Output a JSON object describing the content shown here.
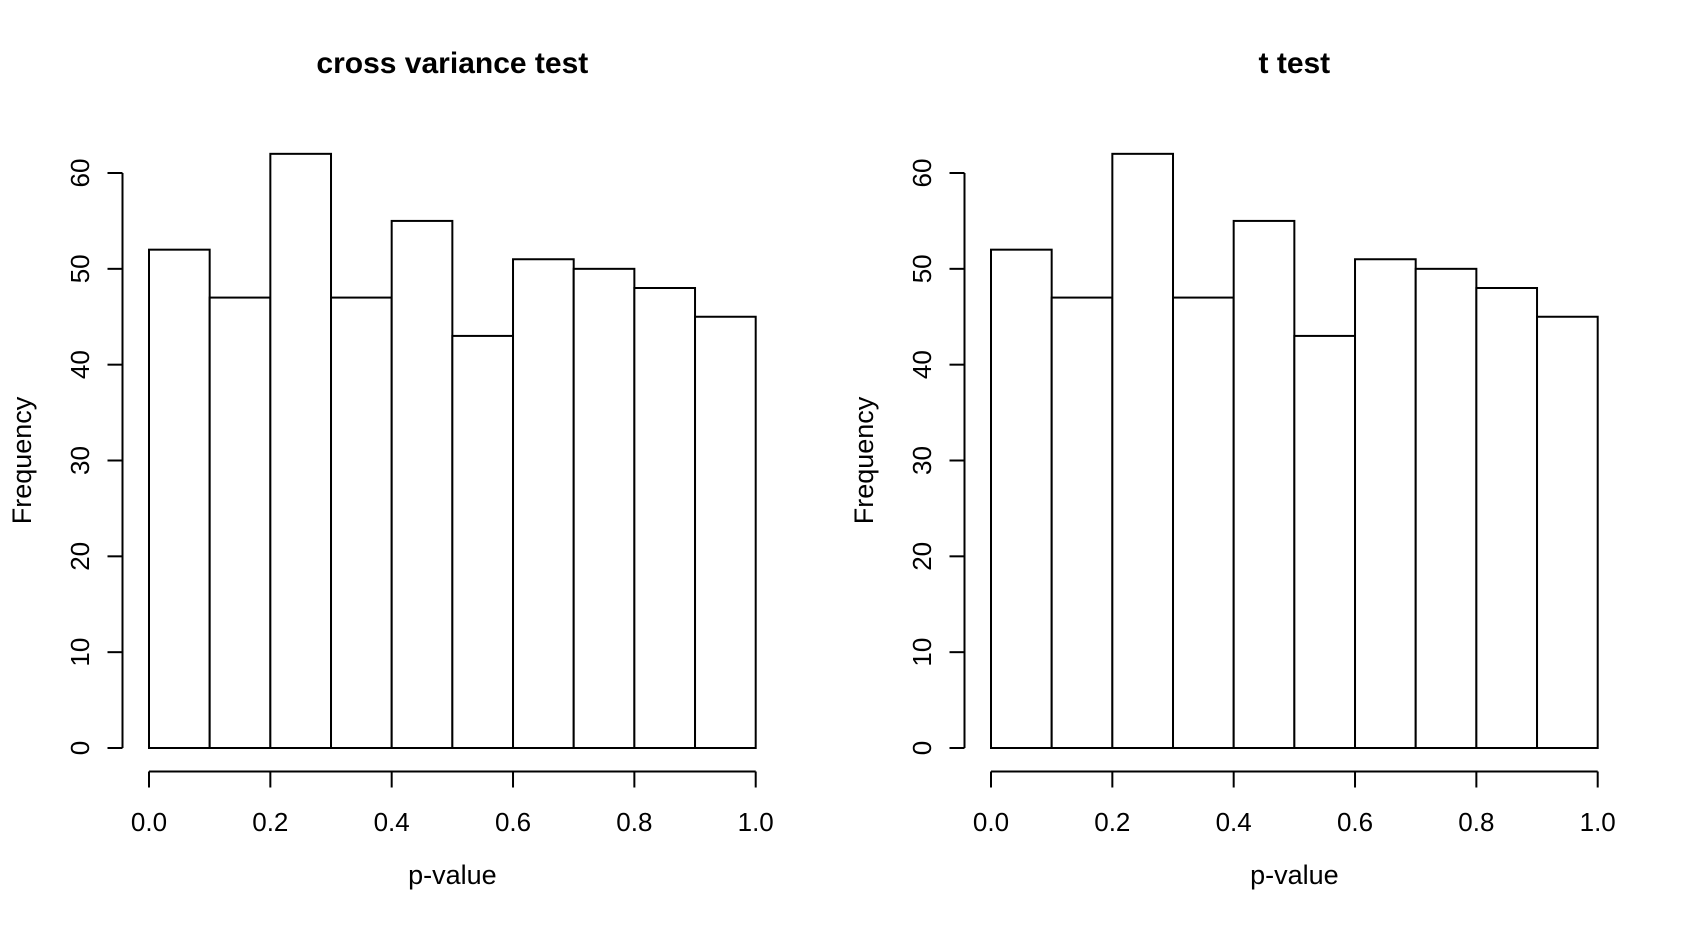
{
  "figure": {
    "background": "#ffffff",
    "foreground": "#000000"
  },
  "chart_data": [
    {
      "type": "bar",
      "chart_kind": "histogram",
      "title": "cross variance test",
      "xlabel": "p-value",
      "ylabel": "Frequency",
      "bins": {
        "start": 0.0,
        "end": 1.0,
        "width": 0.1
      },
      "categories": [
        "0.0-0.1",
        "0.1-0.2",
        "0.2-0.3",
        "0.3-0.4",
        "0.4-0.5",
        "0.5-0.6",
        "0.6-0.7",
        "0.7-0.8",
        "0.8-0.9",
        "0.9-1.0"
      ],
      "values": [
        52,
        47,
        62,
        47,
        55,
        43,
        51,
        50,
        48,
        45
      ],
      "xlim": [
        0.0,
        1.0
      ],
      "ylim": [
        0,
        60
      ],
      "x_tick_values": [
        0.0,
        0.2,
        0.4,
        0.6,
        0.8,
        1.0
      ],
      "x_tick_labels": [
        "0.0",
        "0.2",
        "0.4",
        "0.6",
        "0.8",
        "1.0"
      ],
      "y_tick_values": [
        0,
        10,
        20,
        30,
        40,
        50,
        60
      ],
      "y_tick_labels": [
        "0",
        "10",
        "20",
        "30",
        "40",
        "50",
        "60"
      ],
      "grid": false,
      "legend_position": "none",
      "bar_fill": "#ffffff",
      "stroke_color": "#000000",
      "background": "#ffffff"
    },
    {
      "type": "bar",
      "chart_kind": "histogram",
      "title": "t test",
      "xlabel": "p-value",
      "ylabel": "Frequency",
      "bins": {
        "start": 0.0,
        "end": 1.0,
        "width": 0.1
      },
      "categories": [
        "0.0-0.1",
        "0.1-0.2",
        "0.2-0.3",
        "0.3-0.4",
        "0.4-0.5",
        "0.5-0.6",
        "0.6-0.7",
        "0.7-0.8",
        "0.8-0.9",
        "0.9-1.0"
      ],
      "values": [
        52,
        47,
        62,
        47,
        55,
        43,
        51,
        50,
        48,
        45
      ],
      "xlim": [
        0.0,
        1.0
      ],
      "ylim": [
        0,
        60
      ],
      "x_tick_values": [
        0.0,
        0.2,
        0.4,
        0.6,
        0.8,
        1.0
      ],
      "x_tick_labels": [
        "0.0",
        "0.2",
        "0.4",
        "0.6",
        "0.8",
        "1.0"
      ],
      "y_tick_values": [
        0,
        10,
        20,
        30,
        40,
        50,
        60
      ],
      "y_tick_labels": [
        "0",
        "10",
        "20",
        "30",
        "40",
        "50",
        "60"
      ],
      "grid": false,
      "legend_position": "none",
      "bar_fill": "#ffffff",
      "stroke_color": "#000000",
      "background": "#ffffff"
    }
  ]
}
